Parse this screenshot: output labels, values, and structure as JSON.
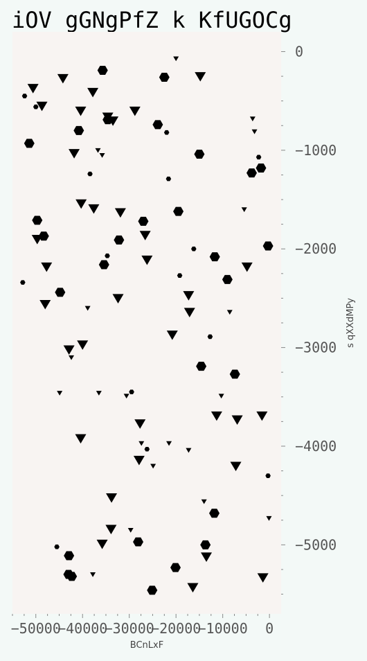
{
  "chart_data": {
    "type": "scatter",
    "title": "iOV gGNgPfZ k KfUGOCg",
    "xlabel": "BCnLxF",
    "ylabel": "s qXXdMPy",
    "xlim": [
      -55000,
      2500
    ],
    "ylim": [
      -5700,
      200
    ],
    "x_ticks": [
      {
        "value": -50000,
        "label": "−50000"
      },
      {
        "value": -40000,
        "label": "−40000"
      },
      {
        "value": -30000,
        "label": "−30000"
      },
      {
        "value": -20000,
        "label": "−20000"
      },
      {
        "value": -10000,
        "label": "−10000"
      },
      {
        "value": 0,
        "label": "0"
      }
    ],
    "y_ticks": [
      {
        "value": 0,
        "label": "0"
      },
      {
        "value": -1000,
        "label": "−1000"
      },
      {
        "value": -2000,
        "label": "−2000"
      },
      {
        "value": -3000,
        "label": "−3000"
      },
      {
        "value": -4000,
        "label": "−4000"
      },
      {
        "value": -5000,
        "label": "−5000"
      }
    ],
    "grid": false,
    "y_axis_side": "right",
    "colors": {
      "plot_bg": "#f8f4f2",
      "page_bg": "#f3f9f7",
      "marker": "#000000"
    },
    "series": [
      {
        "marker": "hexagon",
        "points": [
          {
            "x": -35700,
            "y": -190,
            "s": "l"
          },
          {
            "x": -22500,
            "y": -260,
            "s": "l"
          },
          {
            "x": -52400,
            "y": -450,
            "s": "s"
          },
          {
            "x": -50000,
            "y": -560,
            "s": "s"
          },
          {
            "x": -34600,
            "y": -690,
            "s": "l"
          },
          {
            "x": -23900,
            "y": -740,
            "s": "l"
          },
          {
            "x": -40800,
            "y": -800,
            "s": "l"
          },
          {
            "x": -22000,
            "y": -820,
            "s": "s"
          },
          {
            "x": -51400,
            "y": -930,
            "s": "l"
          },
          {
            "x": -15000,
            "y": -1040,
            "s": "l"
          },
          {
            "x": -2300,
            "y": -1070,
            "s": "s"
          },
          {
            "x": -1800,
            "y": -1180,
            "s": "l"
          },
          {
            "x": -3800,
            "y": -1230,
            "s": "l"
          },
          {
            "x": -38400,
            "y": -1240,
            "s": "s"
          },
          {
            "x": -21600,
            "y": -1290,
            "s": "s"
          },
          {
            "x": -19500,
            "y": -1620,
            "s": "l"
          },
          {
            "x": -49700,
            "y": -1710,
            "s": "l"
          },
          {
            "x": -27000,
            "y": -1720,
            "s": "l"
          },
          {
            "x": -48300,
            "y": -1870,
            "s": "l"
          },
          {
            "x": -32200,
            "y": -1910,
            "s": "l"
          },
          {
            "x": -300,
            "y": -1970,
            "s": "l"
          },
          {
            "x": -16200,
            "y": -2000,
            "s": "s"
          },
          {
            "x": -34700,
            "y": -2070,
            "s": "s"
          },
          {
            "x": -11700,
            "y": -2080,
            "s": "l"
          },
          {
            "x": -35400,
            "y": -2160,
            "s": "l"
          },
          {
            "x": -19200,
            "y": -2270,
            "s": "s"
          },
          {
            "x": -9000,
            "y": -2310,
            "s": "l"
          },
          {
            "x": -52800,
            "y": -2340,
            "s": "s"
          },
          {
            "x": -44800,
            "y": -2440,
            "s": "l"
          },
          {
            "x": -12700,
            "y": -2890,
            "s": "s"
          },
          {
            "x": -14600,
            "y": -3190,
            "s": "l"
          },
          {
            "x": -7400,
            "y": -3270,
            "s": "l"
          },
          {
            "x": -29500,
            "y": -3450,
            "s": "s"
          },
          {
            "x": -26200,
            "y": -4030,
            "s": "s"
          },
          {
            "x": -300,
            "y": -4300,
            "s": "s"
          },
          {
            "x": -11800,
            "y": -4680,
            "s": "l"
          },
          {
            "x": -28100,
            "y": -4970,
            "s": "l"
          },
          {
            "x": -13700,
            "y": -5000,
            "s": "l"
          },
          {
            "x": -45500,
            "y": -5020,
            "s": "s"
          },
          {
            "x": -42900,
            "y": -5110,
            "s": "l"
          },
          {
            "x": -20100,
            "y": -5230,
            "s": "l"
          },
          {
            "x": -43000,
            "y": -5300,
            "s": "l"
          },
          {
            "x": -42300,
            "y": -5320,
            "s": "l"
          },
          {
            "x": -25100,
            "y": -5460,
            "s": "l"
          }
        ]
      },
      {
        "marker": "triangle-down",
        "points": [
          {
            "x": -20000,
            "y": -70,
            "s": "s"
          },
          {
            "x": -50600,
            "y": -370,
            "s": "l"
          },
          {
            "x": -44200,
            "y": -270,
            "s": "l"
          },
          {
            "x": -14800,
            "y": -250,
            "s": "l"
          },
          {
            "x": -37800,
            "y": -410,
            "s": "l"
          },
          {
            "x": -48700,
            "y": -550,
            "s": "l"
          },
          {
            "x": -40400,
            "y": -600,
            "s": "l"
          },
          {
            "x": -28800,
            "y": -600,
            "s": "l"
          },
          {
            "x": -34600,
            "y": -660,
            "s": "l"
          },
          {
            "x": -33500,
            "y": -700,
            "s": "l"
          },
          {
            "x": -3600,
            "y": -680,
            "s": "s"
          },
          {
            "x": -3200,
            "y": -810,
            "s": "s"
          },
          {
            "x": -41800,
            "y": -1030,
            "s": "l"
          },
          {
            "x": -36700,
            "y": -1000,
            "s": "s"
          },
          {
            "x": -35800,
            "y": -1050,
            "s": "s"
          },
          {
            "x": -40300,
            "y": -1540,
            "s": "l"
          },
          {
            "x": -37600,
            "y": -1590,
            "s": "l"
          },
          {
            "x": -31900,
            "y": -1630,
            "s": "l"
          },
          {
            "x": -5400,
            "y": -1600,
            "s": "s"
          },
          {
            "x": -49700,
            "y": -1900,
            "s": "l"
          },
          {
            "x": -26600,
            "y": -1860,
            "s": "l"
          },
          {
            "x": -47700,
            "y": -2180,
            "s": "l"
          },
          {
            "x": -26200,
            "y": -2110,
            "s": "l"
          },
          {
            "x": -4800,
            "y": -2180,
            "s": "l"
          },
          {
            "x": -48000,
            "y": -2560,
            "s": "l"
          },
          {
            "x": -32400,
            "y": -2500,
            "s": "l"
          },
          {
            "x": -17300,
            "y": -2470,
            "s": "l"
          },
          {
            "x": -38900,
            "y": -2600,
            "s": "s"
          },
          {
            "x": -17100,
            "y": -2640,
            "s": "l"
          },
          {
            "x": -8500,
            "y": -2640,
            "s": "s"
          },
          {
            "x": -20800,
            "y": -2870,
            "s": "l"
          },
          {
            "x": -40000,
            "y": -2970,
            "s": "l"
          },
          {
            "x": -42900,
            "y": -3020,
            "s": "l"
          },
          {
            "x": -42400,
            "y": -3100,
            "s": "s"
          },
          {
            "x": -44900,
            "y": -3460,
            "s": "s"
          },
          {
            "x": -36500,
            "y": -3460,
            "s": "s"
          },
          {
            "x": -30600,
            "y": -3490,
            "s": "s"
          },
          {
            "x": -10300,
            "y": -3490,
            "s": "s"
          },
          {
            "x": -11300,
            "y": -3690,
            "s": "l"
          },
          {
            "x": -6900,
            "y": -3730,
            "s": "l"
          },
          {
            "x": -1600,
            "y": -3690,
            "s": "l"
          },
          {
            "x": -27700,
            "y": -3770,
            "s": "l"
          },
          {
            "x": -40400,
            "y": -3920,
            "s": "l"
          },
          {
            "x": -27400,
            "y": -3970,
            "s": "s"
          },
          {
            "x": -21500,
            "y": -3970,
            "s": "s"
          },
          {
            "x": -17300,
            "y": -4040,
            "s": "s"
          },
          {
            "x": -27900,
            "y": -4140,
            "s": "l"
          },
          {
            "x": -24900,
            "y": -4200,
            "s": "s"
          },
          {
            "x": -7200,
            "y": -4200,
            "s": "l"
          },
          {
            "x": -33800,
            "y": -4520,
            "s": "l"
          },
          {
            "x": -14000,
            "y": -4560,
            "s": "s"
          },
          {
            "x": -100,
            "y": -4730,
            "s": "s"
          },
          {
            "x": -33900,
            "y": -4840,
            "s": "l"
          },
          {
            "x": -29700,
            "y": -4850,
            "s": "s"
          },
          {
            "x": -35800,
            "y": -4990,
            "s": "l"
          },
          {
            "x": -13500,
            "y": -5120,
            "s": "l"
          },
          {
            "x": -37800,
            "y": -5300,
            "s": "s"
          },
          {
            "x": -1400,
            "y": -5330,
            "s": "l"
          },
          {
            "x": -16400,
            "y": -5430,
            "s": "l"
          }
        ]
      }
    ]
  }
}
